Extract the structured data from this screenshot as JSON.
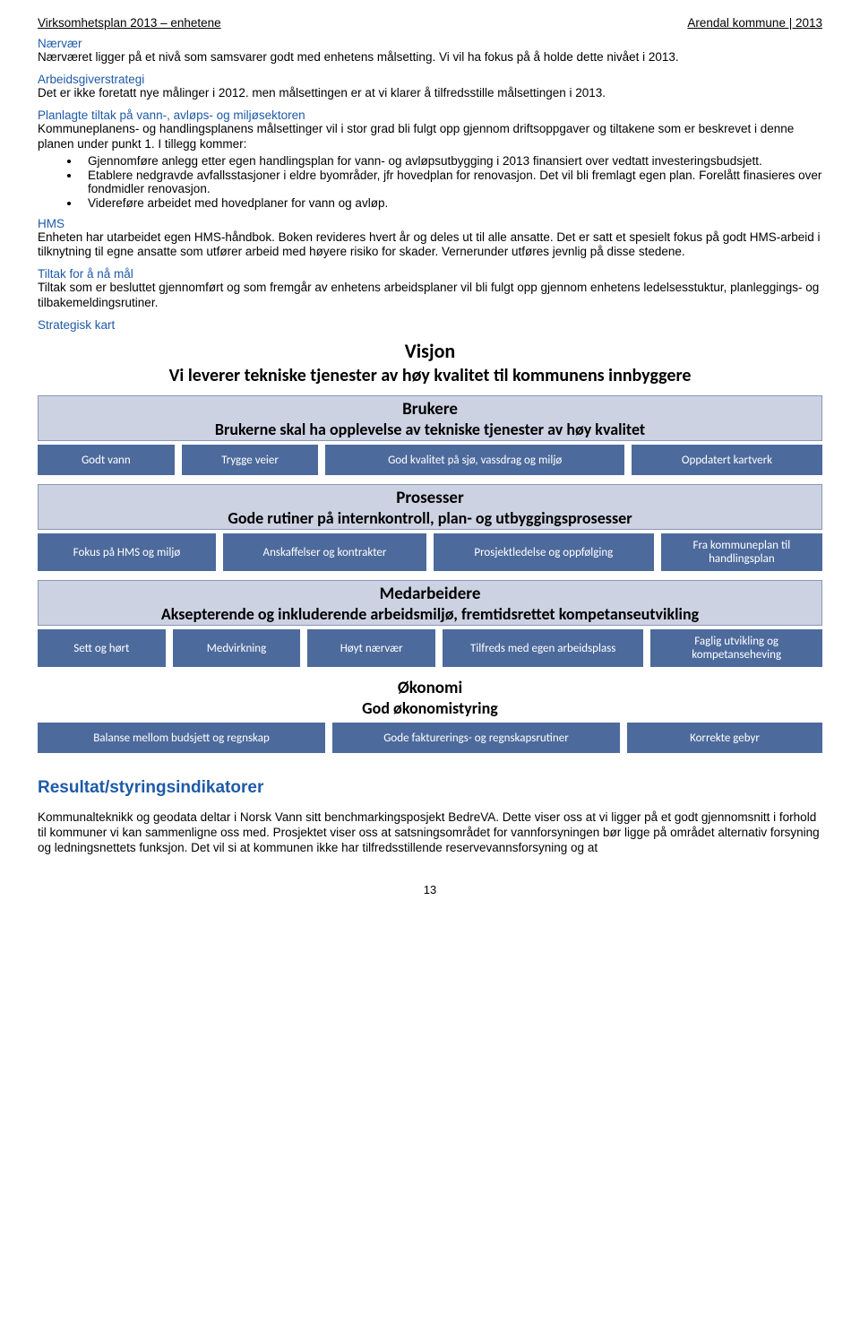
{
  "header": {
    "left": "Virksomhetsplan 2013 – enhetene",
    "right": "Arendal kommune | 2013"
  },
  "sections": {
    "naervaer": {
      "title": "Nærvær",
      "text": "Nærværet ligger på et nivå som samsvarer godt med enhetens målsetting. Vi vil ha fokus på å holde dette nivået i 2013."
    },
    "arbeidsgiver": {
      "title": "Arbeidsgiverstrategi",
      "text": "Det er ikke foretatt nye målinger i 2012. men målsettingen er at vi klarer å tilfredsstille målsettingen i 2013."
    },
    "planlagte": {
      "title": "Planlagte tiltak på vann-, avløps- og miljøsektoren",
      "text": "Kommuneplanens- og handlingsplanens målsettinger vil i stor grad bli fulgt opp gjennom driftsoppgaver og tiltakene som er beskrevet i denne planen under punkt 1. I tillegg kommer:",
      "bullets": [
        "Gjennomføre anlegg etter egen handlingsplan for vann- og avløpsutbygging i 2013 finansiert over vedtatt investeringsbudsjett.",
        "Etablere nedgravde avfallsstasjoner i eldre byområder, jfr hovedplan for renovasjon. Det vil bli fremlagt egen plan. Forelått finasieres over fondmidler renovasjon.",
        "Videreføre arbeidet med hovedplaner for vann og avløp."
      ]
    },
    "hms": {
      "title": "HMS",
      "text": "Enheten har utarbeidet egen HMS-håndbok. Boken revideres hvert år og deles ut til alle ansatte. Det er satt et spesielt fokus på godt HMS-arbeid i tilknytning til egne ansatte som utfører arbeid med høyere risiko for skader. Vernerunder utføres jevnlig på disse stedene."
    },
    "tiltak": {
      "title": "Tiltak for å nå mål",
      "text": "Tiltak som er besluttet gjennomført og som fremgår av enhetens arbeidsplaner vil bli fulgt opp gjennom enhetens ledelsesstuktur, planleggings- og tilbakemeldingsrutiner."
    },
    "strategisk": {
      "title": "Strategisk kart"
    }
  },
  "kart": {
    "vision": {
      "title": "Visjon",
      "text": "Vi leverer tekniske tjenester av høy kvalitet til kommunens innbyggere"
    },
    "perspectives": [
      {
        "banner_title": "Brukere",
        "banner_sub": "Brukerne skal ha opplevelse av tekniske tjenester av høy kvalitet",
        "boxes": [
          "Godt vann",
          "Trygge veier",
          "God kvalitet på sjø, vassdrag og miljø",
          "Oppdatert kartverk"
        ],
        "layout": "four",
        "box_flex": [
          "0.7",
          "0.7",
          "1.6",
          "1.0"
        ]
      },
      {
        "banner_title": "Prosesser",
        "banner_sub": "Gode rutiner på internkontroll, plan- og utbyggingsprosesser",
        "boxes": [
          "Fokus på HMS og miljø",
          "Anskaffelser og kontrakter",
          "Prosjektledelse og oppfølging",
          "Fra kommuneplan til handlingsplan"
        ],
        "layout": "four",
        "box_flex": [
          "1",
          "1.15",
          "1.25",
          "0.9"
        ]
      },
      {
        "banner_title": "Medarbeidere",
        "banner_sub": "Aksepterende og inkluderende arbeidsmiljø, fremtidsrettet kompetanseutvikling",
        "boxes": [
          "Sett og hørt",
          "Medvirkning",
          "Høyt nærvær",
          "Tilfreds med egen arbeidsplass",
          "Faglig utvikling og kompetanseheving"
        ],
        "layout": "five",
        "box_flex": [
          "0.8",
          "0.8",
          "0.8",
          "1.3",
          "1.1"
        ]
      },
      {
        "banner_title": "Økonomi",
        "banner_sub": "God økonomistyring",
        "boxes": [
          "Balanse mellom budsjett og regnskap",
          "Gode fakturerings- og regnskapsrutiner",
          "Korrekte gebyr"
        ],
        "layout": "three",
        "box_flex": [
          "1.2",
          "1.2",
          "0.8"
        ],
        "white_band": true
      }
    ],
    "colors": {
      "banner_bg": "#ccd2e2",
      "banner_border": "#8a97b8",
      "box_bg": "#4d6a9c",
      "box_text": "#ffffff"
    }
  },
  "resultat": {
    "heading": "Resultat/styringsindikatorer",
    "text": "Kommunalteknikk og geodata deltar i Norsk Vann sitt benchmarkingsposjekt BedreVA. Dette viser oss at vi ligger på et godt gjennomsnitt i forhold til kommuner vi kan sammenligne oss med. Prosjektet viser oss at satsningsområdet for vannforsyningen bør ligge på området alternativ forsyning og ledningsnettets funksjon. Det vil si at kommunen ikke har tilfredsstillende reservevannsforsyning og at"
  },
  "page_number": "13"
}
